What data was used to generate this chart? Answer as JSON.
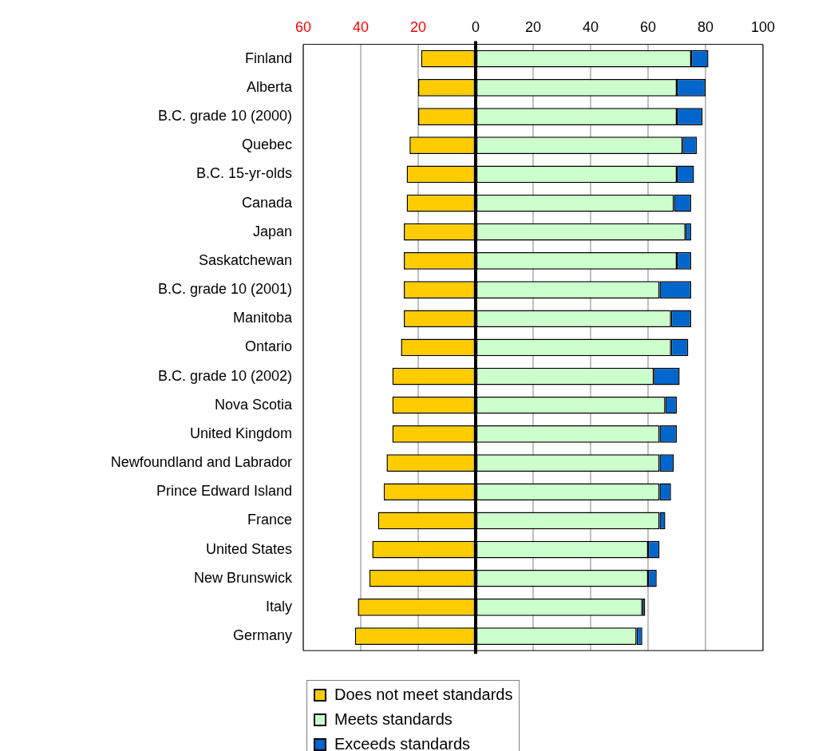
{
  "chart_data": {
    "type": "bar",
    "orientation": "horizontal",
    "stacked": true,
    "categories": [
      "Finland",
      "Alberta",
      "B.C. grade 10 (2000)",
      "Quebec",
      "B.C. 15-yr-olds",
      "Canada",
      "Japan",
      "Saskatchewan",
      "B.C. grade 10 (2001)",
      "Manitoba",
      "Ontario",
      "B.C. grade 10 (2002)",
      "Nova Scotia",
      "United Kingdom",
      "Newfoundland and Labrador",
      "Prince Edward Island",
      "France",
      "United States",
      "New Brunswick",
      "Italy",
      "Germany"
    ],
    "series": [
      {
        "name": "Does not meet standards",
        "color": "#ffcc00",
        "values": [
          -19,
          -20,
          -20,
          -23,
          -24,
          -24,
          -25,
          -25,
          -25,
          -25,
          -26,
          -29,
          -29,
          -29,
          -31,
          -32,
          -34,
          -36,
          -37,
          -41,
          -42
        ]
      },
      {
        "name": "Meets standards",
        "color": "#ccffcc",
        "values": [
          75,
          70,
          70,
          72,
          70,
          69,
          73,
          70,
          64,
          68,
          68,
          62,
          66,
          64,
          64,
          64,
          64,
          60,
          60,
          58,
          56
        ]
      },
      {
        "name": "Exceeds standards",
        "color": "#0066cc",
        "values": [
          6,
          10,
          9,
          5,
          6,
          6,
          2,
          5,
          11,
          7,
          6,
          9,
          4,
          6,
          5,
          4,
          2,
          4,
          3,
          1,
          2
        ]
      }
    ],
    "xlim": [
      -60,
      100
    ],
    "xticks": [
      {
        "value": -60,
        "label": "60"
      },
      {
        "value": -40,
        "label": "40"
      },
      {
        "value": -20,
        "label": "20"
      },
      0,
      20,
      40,
      60,
      80,
      100
    ],
    "grid": "x",
    "legend": "bottom",
    "ref_lines": [
      {
        "axis": "x",
        "value": 0,
        "color": "#000000"
      }
    ]
  }
}
